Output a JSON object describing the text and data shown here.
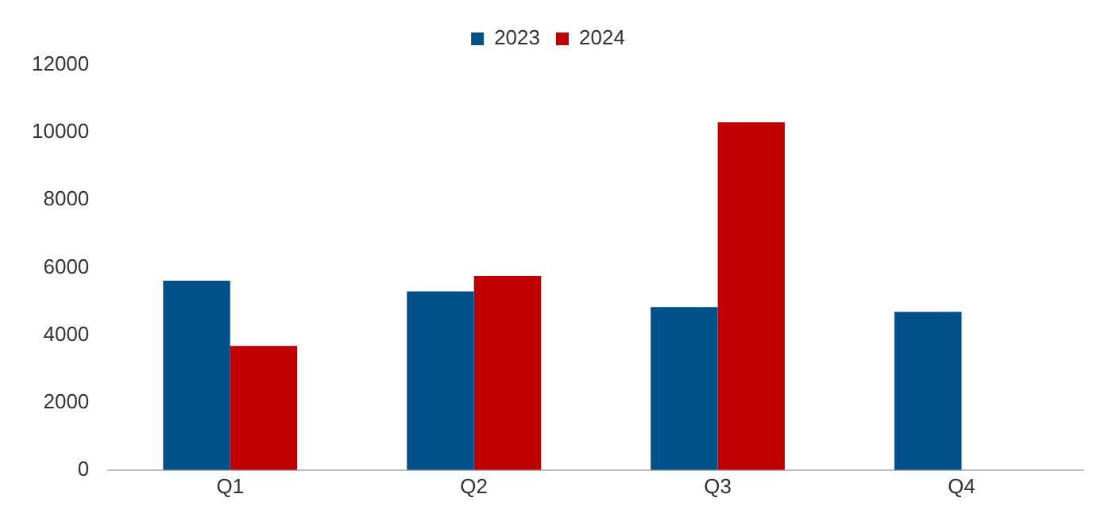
{
  "chart_data": {
    "type": "bar",
    "categories": [
      "Q1",
      "Q2",
      "Q3",
      "Q4"
    ],
    "series": [
      {
        "name": "2023",
        "color": "#00508a",
        "values": [
          5610,
          5290,
          4830,
          4690
        ]
      },
      {
        "name": "2024",
        "color": "#c00000",
        "values": [
          3680,
          5750,
          10300,
          null
        ]
      }
    ],
    "ylim": [
      0,
      12000
    ],
    "yticks": [
      0,
      2000,
      4000,
      6000,
      8000,
      10000,
      12000
    ],
    "grid": false,
    "legend": "top"
  }
}
